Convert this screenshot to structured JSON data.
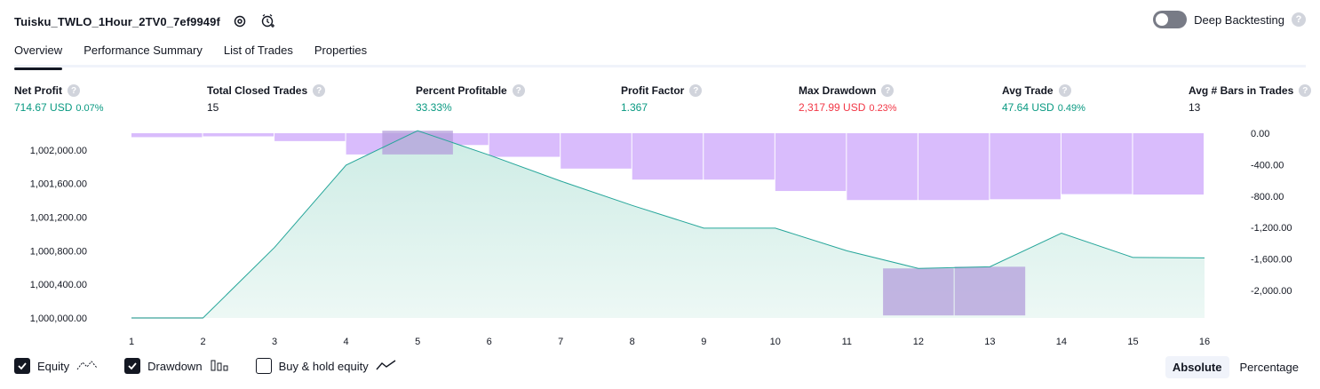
{
  "header": {
    "strategy_name": "Tuisku_TWLO_1Hour_2TV0_7ef9949f",
    "settings_icon": "gear-icon",
    "alert_icon": "add-alert-icon"
  },
  "deep_backtesting": {
    "label": "Deep Backtesting",
    "enabled": false
  },
  "tabs": [
    {
      "label": "Overview",
      "active": true
    },
    {
      "label": "Performance Summary",
      "active": false
    },
    {
      "label": "List of Trades",
      "active": false
    },
    {
      "label": "Properties",
      "active": false
    }
  ],
  "metrics": {
    "net_profit": {
      "label": "Net Profit",
      "value": "714.67 USD",
      "pct": "0.07%"
    },
    "total_closed_trades": {
      "label": "Total Closed Trades",
      "value": "15"
    },
    "percent_profitable": {
      "label": "Percent Profitable",
      "value": "33.33%"
    },
    "profit_factor": {
      "label": "Profit Factor",
      "value": "1.367"
    },
    "max_drawdown": {
      "label": "Max Drawdown",
      "value": "2,317.99 USD",
      "pct": "0.23%"
    },
    "avg_trade": {
      "label": "Avg Trade",
      "value": "47.64 USD",
      "pct": "0.49%"
    },
    "avg_bars": {
      "label": "Avg # Bars in Trades",
      "value": "13"
    }
  },
  "chart_data": {
    "type": "line",
    "x": [
      1,
      2,
      3,
      4,
      5,
      6,
      7,
      8,
      9,
      10,
      11,
      12,
      13,
      14,
      15,
      16
    ],
    "series": [
      {
        "name": "Equity",
        "values": [
          1000000,
          1000000,
          1000840,
          1001820,
          1002230,
          1001940,
          1001630,
          1001340,
          1001070,
          1001070,
          1000800,
          1000590,
          1000610,
          1001010,
          1000720,
          1000715
        ]
      },
      {
        "name": "Drawdown",
        "values": [
          0,
          -50,
          -40,
          -100,
          -270,
          -150,
          -300,
          -450,
          -590,
          -590,
          -735,
          -850,
          -850,
          -840,
          -775,
          -780
        ]
      }
    ],
    "drawdown_range": [
      {
        "x": 2,
        "value": 0
      },
      {
        "x": 3,
        "value": 0
      },
      {
        "x": 4,
        "value": 0
      },
      {
        "x": 5,
        "value": -270
      },
      {
        "x": 6,
        "value": -150
      },
      {
        "x": 7,
        "value": -300
      },
      {
        "x": 8,
        "value": -450
      },
      {
        "x": 9,
        "value": -590
      },
      {
        "x": 10,
        "value": -590
      },
      {
        "x": 11,
        "value": -735
      },
      {
        "x": 12,
        "value": -2318
      },
      {
        "x": 13,
        "value": -2318
      },
      {
        "x": 14,
        "value": -840
      },
      {
        "x": 15,
        "value": -775
      }
    ],
    "left_axis": {
      "ylim": [
        1000000,
        1002200
      ],
      "ticks": [
        "1,000,000.00",
        "1,000,400.00",
        "1,000,800.00",
        "1,001,200.00",
        "1,001,600.00",
        "1,002,000.00"
      ],
      "tick_values": [
        1000000,
        1000400,
        1000800,
        1001200,
        1001600,
        1002000
      ]
    },
    "right_axis": {
      "ylim": [
        -2350,
        0
      ],
      "ticks": [
        "0.00",
        "-400.00",
        "-800.00",
        "-1,200.00",
        "-1,600.00",
        "-2,000.00"
      ],
      "tick_values": [
        0,
        -400,
        -800,
        -1200,
        -1600,
        -2000
      ]
    },
    "x_ticks": [
      "1",
      "2",
      "3",
      "4",
      "5",
      "6",
      "7",
      "8",
      "9",
      "10",
      "11",
      "12",
      "13",
      "14",
      "15",
      "16"
    ],
    "grid": false,
    "colors": {
      "equity_line": "#26a69a",
      "equity_fill": "#cdece5",
      "drawdown": "#d9bcfc",
      "drawdown_dark": "#b39ddb"
    }
  },
  "legend": [
    {
      "label": "Equity",
      "checked": true,
      "icon": "equity-line-icon"
    },
    {
      "label": "Drawdown",
      "checked": true,
      "icon": "drawdown-bars-icon"
    },
    {
      "label": "Buy & hold equity",
      "checked": false,
      "icon": "buy-hold-line-icon"
    }
  ],
  "modes": [
    {
      "label": "Absolute",
      "active": true
    },
    {
      "label": "Percentage",
      "active": false
    }
  ]
}
